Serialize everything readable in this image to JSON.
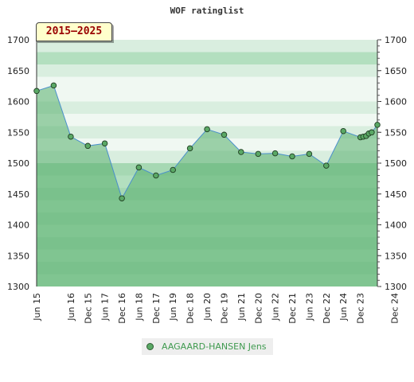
{
  "chart_data": {
    "type": "area",
    "title": "WOF ratinglist",
    "period_badge": "2015–2025",
    "ylim": [
      1300,
      1700
    ],
    "y_ticks": [
      1300,
      1350,
      1400,
      1450,
      1500,
      1550,
      1600,
      1650,
      1700
    ],
    "x_tick_labels": [
      "Jun 15",
      "Dec 15",
      "Jun 16",
      "Dec 16",
      "Jun 17",
      "Dec 17",
      "Jun 18",
      "Dec 18",
      "Jun 19",
      "Dec 19",
      "Jun 20",
      "Dec 20",
      "Jun 21",
      "Dec 21",
      "Jun 22",
      "Dec 22",
      "Jun 23",
      "Dec 23",
      "Jun 24",
      "Dec 24"
    ],
    "legend_placement": "bottom",
    "series": [
      {
        "name": "AAGAARD-HANSEN Jens",
        "color": "#5aa865",
        "points": [
          {
            "x": "2015-06",
            "y": 1617
          },
          {
            "x": "2015-12",
            "y": 1626
          },
          {
            "x": "2016-06",
            "y": 1543
          },
          {
            "x": "2016-12",
            "y": 1528
          },
          {
            "x": "2017-06",
            "y": 1532
          },
          {
            "x": "2017-12",
            "y": 1443
          },
          {
            "x": "2018-06",
            "y": 1493
          },
          {
            "x": "2018-12",
            "y": 1480
          },
          {
            "x": "2019-06",
            "y": 1489
          },
          {
            "x": "2019-12",
            "y": 1524
          },
          {
            "x": "2020-06",
            "y": 1555
          },
          {
            "x": "2020-12",
            "y": 1546
          },
          {
            "x": "2021-06",
            "y": 1518
          },
          {
            "x": "2021-12",
            "y": 1515
          },
          {
            "x": "2022-06",
            "y": 1516
          },
          {
            "x": "2022-12",
            "y": 1511
          },
          {
            "x": "2023-06",
            "y": 1515
          },
          {
            "x": "2023-12",
            "y": 1496
          },
          {
            "x": "2024-06",
            "y": 1552
          },
          {
            "x": "2024-12",
            "y": 1542
          },
          {
            "x": "2025-01",
            "y": 1543
          },
          {
            "x": "2025-02",
            "y": 1544
          },
          {
            "x": "2025-03",
            "y": 1548
          },
          {
            "x": "2025-04",
            "y": 1550
          },
          {
            "x": "2025-06",
            "y": 1562
          }
        ]
      }
    ],
    "colors": {
      "band_a": "#b3dfbf",
      "band_b": "#d9eedf",
      "band_c": "#f0f8f2",
      "fill": "rgba(86,175,107,0.55)",
      "line": "#4a8fcc",
      "marker": "#5aa865"
    }
  }
}
